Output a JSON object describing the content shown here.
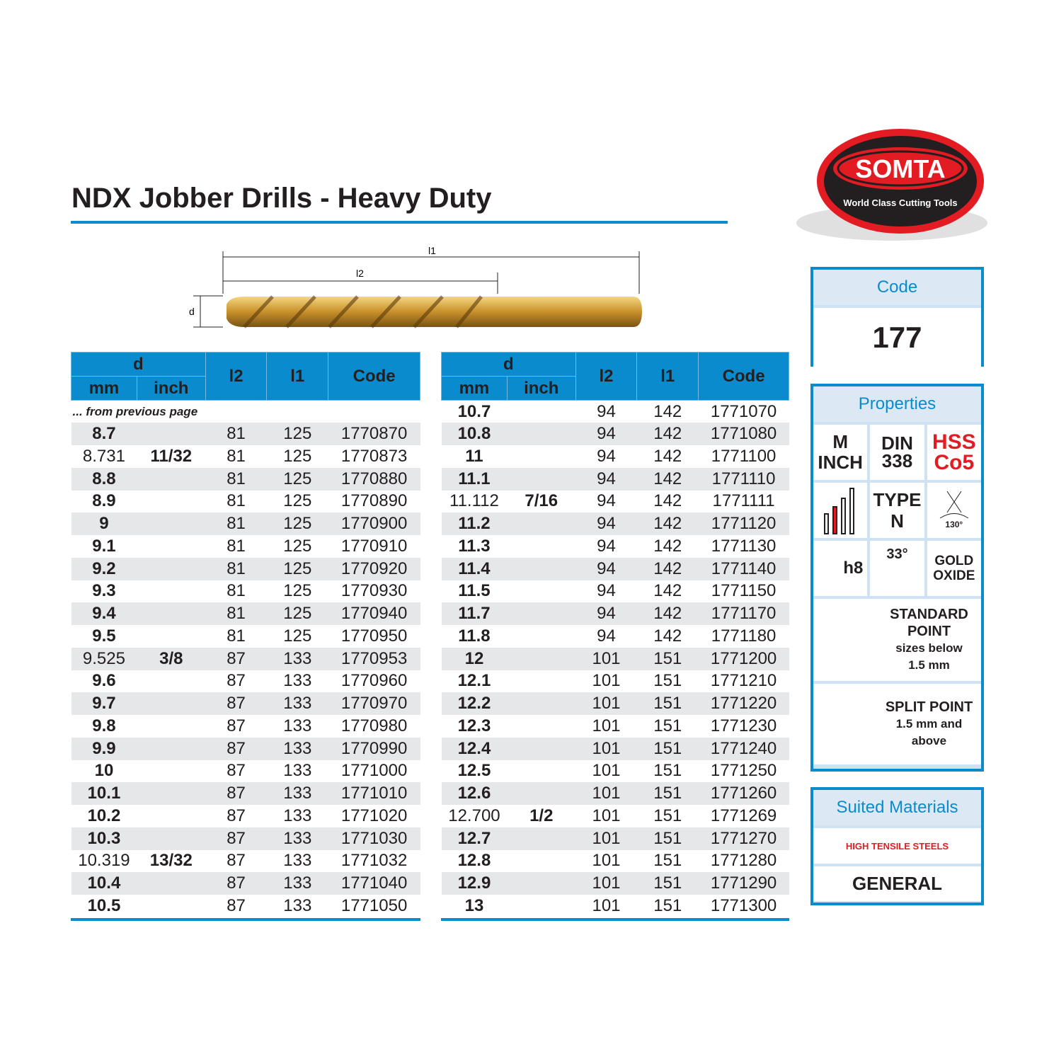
{
  "title": "NDX Jobber Drills - Heavy Duty",
  "logo": {
    "brand": "SOMTA",
    "tagline": "World Class Cutting Tools"
  },
  "diagram": {
    "l1": "l1",
    "l2": "l2",
    "d": "d"
  },
  "colors": {
    "accent": "#0a8bcd",
    "red": "#e31b23",
    "row_alt": "#e6e7e8"
  },
  "table_headers": {
    "d": "d",
    "mm": "mm",
    "inch": "inch",
    "l2": "l2",
    "l1": "l1",
    "code": "Code"
  },
  "from_previous": "... from previous page",
  "left_rows": [
    [
      "8.7",
      "",
      "81",
      "125",
      "1770870"
    ],
    [
      "8.731",
      "11/32",
      "81",
      "125",
      "1770873"
    ],
    [
      "8.8",
      "",
      "81",
      "125",
      "1770880"
    ],
    [
      "8.9",
      "",
      "81",
      "125",
      "1770890"
    ],
    [
      "9",
      "",
      "81",
      "125",
      "1770900"
    ],
    [
      "9.1",
      "",
      "81",
      "125",
      "1770910"
    ],
    [
      "9.2",
      "",
      "81",
      "125",
      "1770920"
    ],
    [
      "9.3",
      "",
      "81",
      "125",
      "1770930"
    ],
    [
      "9.4",
      "",
      "81",
      "125",
      "1770940"
    ],
    [
      "9.5",
      "",
      "81",
      "125",
      "1770950"
    ],
    [
      "9.525",
      "3/8",
      "87",
      "133",
      "1770953"
    ],
    [
      "9.6",
      "",
      "87",
      "133",
      "1770960"
    ],
    [
      "9.7",
      "",
      "87",
      "133",
      "1770970"
    ],
    [
      "9.8",
      "",
      "87",
      "133",
      "1770980"
    ],
    [
      "9.9",
      "",
      "87",
      "133",
      "1770990"
    ],
    [
      "10",
      "",
      "87",
      "133",
      "1771000"
    ],
    [
      "10.1",
      "",
      "87",
      "133",
      "1771010"
    ],
    [
      "10.2",
      "",
      "87",
      "133",
      "1771020"
    ],
    [
      "10.3",
      "",
      "87",
      "133",
      "1771030"
    ],
    [
      "10.319",
      "13/32",
      "87",
      "133",
      "1771032"
    ],
    [
      "10.4",
      "",
      "87",
      "133",
      "1771040"
    ],
    [
      "10.5",
      "",
      "87",
      "133",
      "1771050"
    ]
  ],
  "right_rows": [
    [
      "10.7",
      "",
      "94",
      "142",
      "1771070"
    ],
    [
      "10.8",
      "",
      "94",
      "142",
      "1771080"
    ],
    [
      "11",
      "",
      "94",
      "142",
      "1771100"
    ],
    [
      "11.1",
      "",
      "94",
      "142",
      "1771110"
    ],
    [
      "11.112",
      "7/16",
      "94",
      "142",
      "1771111"
    ],
    [
      "11.2",
      "",
      "94",
      "142",
      "1771120"
    ],
    [
      "11.3",
      "",
      "94",
      "142",
      "1771130"
    ],
    [
      "11.4",
      "",
      "94",
      "142",
      "1771140"
    ],
    [
      "11.5",
      "",
      "94",
      "142",
      "1771150"
    ],
    [
      "11.7",
      "",
      "94",
      "142",
      "1771170"
    ],
    [
      "11.8",
      "",
      "94",
      "142",
      "1771180"
    ],
    [
      "12",
      "",
      "101",
      "151",
      "1771200"
    ],
    [
      "12.1",
      "",
      "101",
      "151",
      "1771210"
    ],
    [
      "12.2",
      "",
      "101",
      "151",
      "1771220"
    ],
    [
      "12.3",
      "",
      "101",
      "151",
      "1771230"
    ],
    [
      "12.4",
      "",
      "101",
      "151",
      "1771240"
    ],
    [
      "12.5",
      "",
      "101",
      "151",
      "1771250"
    ],
    [
      "12.6",
      "",
      "101",
      "151",
      "1771260"
    ],
    [
      "12.700",
      "1/2",
      "101",
      "151",
      "1771269"
    ],
    [
      "12.7",
      "",
      "101",
      "151",
      "1771270"
    ],
    [
      "12.8",
      "",
      "101",
      "151",
      "1771280"
    ],
    [
      "12.9",
      "",
      "101",
      "151",
      "1771290"
    ],
    [
      "13",
      "",
      "101",
      "151",
      "1771300"
    ]
  ],
  "code_panel": {
    "header": "Code",
    "value": "177"
  },
  "properties": {
    "header": "Properties",
    "m": "M",
    "inch": "INCH",
    "din": "DIN",
    "din_no": "338",
    "hss": "HSS",
    "co5": "Co5",
    "type": "TYPE",
    "type_val": "N",
    "angle": "130°",
    "tol": "h8",
    "helix": "33°",
    "gold": "GOLD",
    "oxide": "OXIDE",
    "std_point": [
      "STANDARD",
      "POINT",
      "sizes below",
      "1.5 mm"
    ],
    "split_point": [
      "SPLIT POINT",
      "1.5 mm and",
      "above"
    ]
  },
  "suited": {
    "header": "Suited Materials",
    "item1": "HIGH TENSILE STEELS",
    "item2": "GENERAL"
  }
}
